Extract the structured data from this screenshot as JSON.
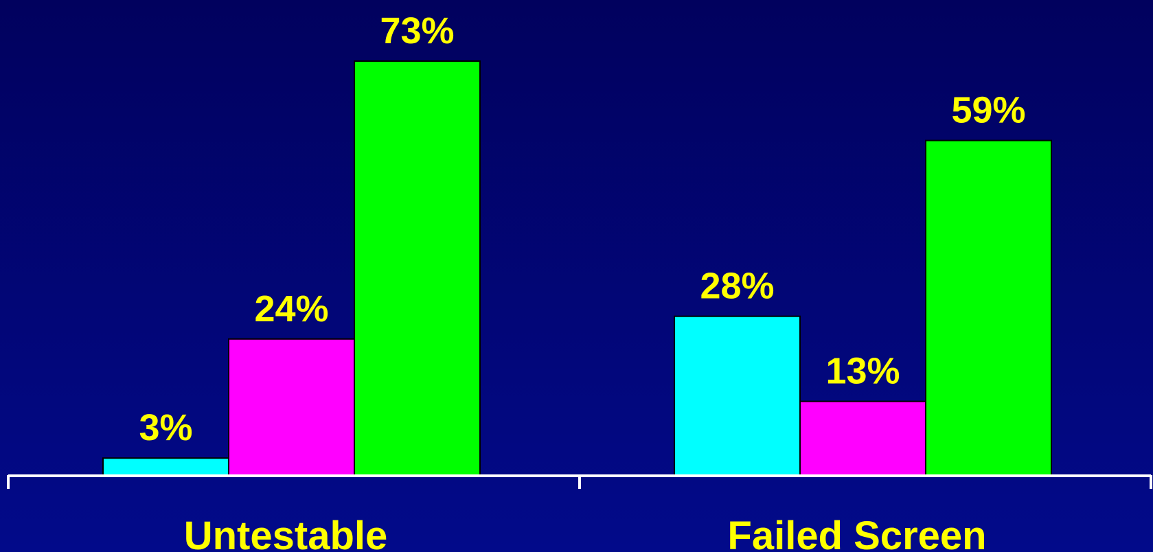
{
  "chart_data": {
    "type": "bar",
    "categories": [
      "Untestable",
      "Failed Screen"
    ],
    "series": [
      {
        "values": [
          3,
          28
        ],
        "color": "#00ffff"
      },
      {
        "values": [
          24,
          13
        ],
        "color": "#ff00ff"
      },
      {
        "values": [
          73,
          59
        ],
        "color": "#00ff00"
      }
    ],
    "data_labels": [
      [
        "3%",
        "28%"
      ],
      [
        "24%",
        "13%"
      ],
      [
        "73%",
        "59%"
      ]
    ],
    "ylim": [
      0,
      73
    ],
    "grid": false,
    "legend": "none"
  },
  "colors": {
    "label_text": "#ffff00",
    "axis": "#ffffff",
    "background_top": "#01015e",
    "background_bottom": "#020a8a"
  }
}
